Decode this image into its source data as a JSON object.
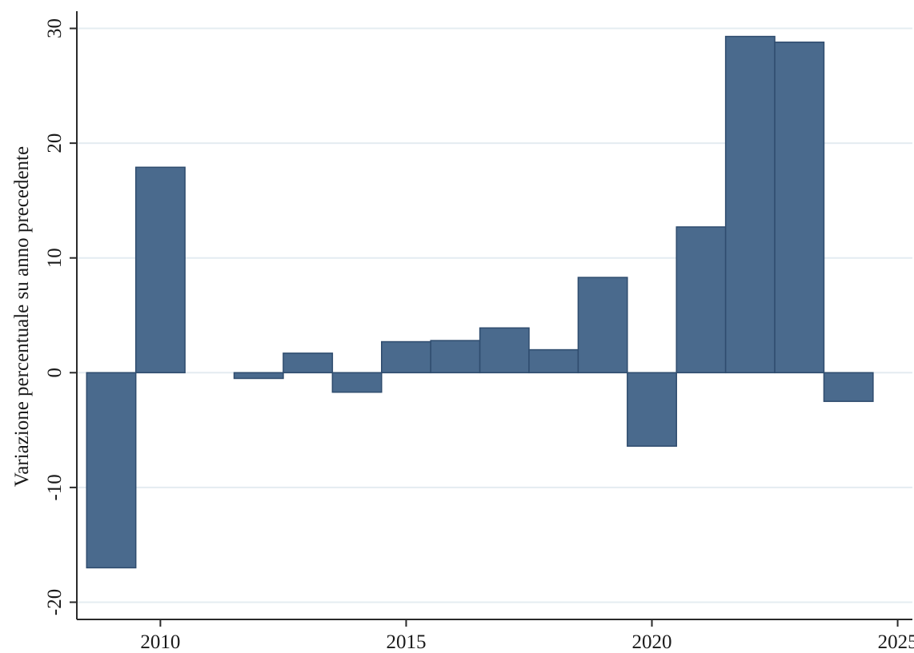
{
  "chart_data": {
    "type": "bar",
    "title": "",
    "xlabel": "",
    "ylabel": "Variazione percentuale su anno precedente",
    "x": [
      2009,
      2010,
      2011,
      2012,
      2013,
      2014,
      2015,
      2016,
      2017,
      2018,
      2019,
      2020,
      2021,
      2022,
      2023,
      2024
    ],
    "values": [
      -17.0,
      17.9,
      0.0,
      -0.5,
      1.7,
      -1.7,
      2.7,
      2.8,
      3.9,
      2.0,
      8.3,
      -6.4,
      12.7,
      29.3,
      28.8,
      -2.5
    ],
    "xlim": [
      2008.3,
      2025.3
    ],
    "ylim": [
      -21.5,
      31.5
    ],
    "xticks": [
      2010,
      2015,
      2020,
      2025
    ],
    "yticks": [
      -20,
      -10,
      0,
      10,
      20,
      30
    ],
    "xtick_labels": [
      "2010",
      "2015",
      "2020",
      "2025"
    ],
    "ytick_labels": [
      "-20",
      "-10",
      "0",
      "10",
      "20",
      "30"
    ],
    "grid": true,
    "legend": "none",
    "colors": {
      "bar_fill": "#4a6a8d",
      "bar_stroke": "#2f4c6e",
      "grid": "#e4ecf1",
      "axis": "#2a2a2a"
    }
  }
}
